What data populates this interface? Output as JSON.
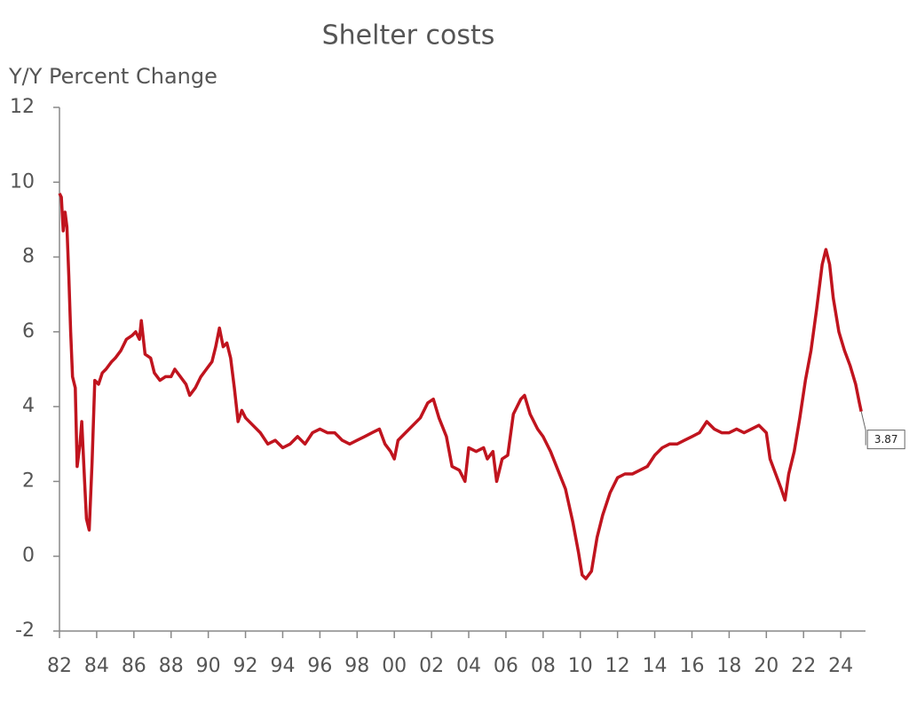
{
  "chart_data": {
    "type": "line",
    "title": "Shelter costs",
    "ylabel": "Y/Y Percent Change",
    "color": "#c0141e",
    "x": [
      1982.0,
      1982.1,
      1982.2,
      1982.3,
      1982.4,
      1982.5,
      1982.6,
      1982.7,
      1982.85,
      1982.95,
      1983.1,
      1983.2,
      1983.35,
      1983.45,
      1983.6,
      1983.75,
      1983.9,
      1984.1,
      1984.3,
      1984.5,
      1984.8,
      1985.0,
      1985.3,
      1985.6,
      1985.9,
      1986.1,
      1986.3,
      1986.4,
      1986.6,
      1986.9,
      1987.1,
      1987.4,
      1987.7,
      1988.0,
      1988.2,
      1988.5,
      1988.8,
      1989.0,
      1989.3,
      1989.6,
      1989.9,
      1990.2,
      1990.4,
      1990.6,
      1990.8,
      1991.0,
      1991.2,
      1991.4,
      1991.6,
      1991.8,
      1992.0,
      1992.4,
      1992.8,
      1993.2,
      1993.6,
      1994.0,
      1994.4,
      1994.8,
      1995.2,
      1995.6,
      1996.0,
      1996.4,
      1996.8,
      1997.2,
      1997.6,
      1998.0,
      1998.4,
      1998.8,
      1999.2,
      1999.5,
      1999.8,
      2000.0,
      2000.2,
      2000.6,
      2001.0,
      2001.4,
      2001.8,
      2002.1,
      2002.4,
      2002.8,
      2003.1,
      2003.5,
      2003.8,
      2004.0,
      2004.4,
      2004.8,
      2005.0,
      2005.3,
      2005.5,
      2005.8,
      2006.1,
      2006.4,
      2006.8,
      2007.0,
      2007.3,
      2007.7,
      2008.0,
      2008.4,
      2008.8,
      2009.2,
      2009.6,
      2009.9,
      2010.1,
      2010.3,
      2010.6,
      2010.9,
      2011.2,
      2011.6,
      2012.0,
      2012.4,
      2012.8,
      2013.2,
      2013.6,
      2014.0,
      2014.4,
      2014.8,
      2015.2,
      2015.6,
      2016.0,
      2016.4,
      2016.8,
      2017.2,
      2017.6,
      2018.0,
      2018.4,
      2018.8,
      2019.2,
      2019.6,
      2020.0,
      2020.2,
      2020.5,
      2020.8,
      2021.0,
      2021.2,
      2021.5,
      2021.8,
      2022.1,
      2022.4,
      2022.7,
      2023.0,
      2023.2,
      2023.4,
      2023.6,
      2023.9,
      2024.2,
      2024.5,
      2024.8,
      2025.0,
      2025.1
    ],
    "values": [
      9.7,
      9.6,
      8.7,
      9.2,
      8.8,
      7.5,
      6.0,
      4.8,
      4.5,
      2.4,
      3.0,
      3.6,
      2.0,
      1.0,
      0.7,
      2.5,
      4.7,
      4.6,
      4.9,
      5.0,
      5.2,
      5.3,
      5.5,
      5.8,
      5.9,
      6.0,
      5.8,
      6.3,
      5.4,
      5.3,
      4.9,
      4.7,
      4.8,
      4.8,
      5.0,
      4.8,
      4.6,
      4.3,
      4.5,
      4.8,
      5.0,
      5.2,
      5.6,
      6.1,
      5.6,
      5.7,
      5.3,
      4.5,
      3.6,
      3.9,
      3.7,
      3.5,
      3.3,
      3.0,
      3.1,
      2.9,
      3.0,
      3.2,
      3.0,
      3.3,
      3.4,
      3.3,
      3.3,
      3.1,
      3.0,
      3.1,
      3.2,
      3.3,
      3.4,
      3.0,
      2.8,
      2.6,
      3.1,
      3.3,
      3.5,
      3.7,
      4.1,
      4.2,
      3.7,
      3.2,
      2.4,
      2.3,
      2.0,
      2.9,
      2.8,
      2.9,
      2.6,
      2.8,
      2.0,
      2.6,
      2.7,
      3.8,
      4.2,
      4.3,
      3.8,
      3.4,
      3.2,
      2.8,
      2.3,
      1.8,
      0.9,
      0.1,
      -0.5,
      -0.6,
      -0.4,
      0.5,
      1.1,
      1.7,
      2.1,
      2.2,
      2.2,
      2.3,
      2.4,
      2.7,
      2.9,
      3.0,
      3.0,
      3.1,
      3.2,
      3.3,
      3.6,
      3.4,
      3.3,
      3.3,
      3.4,
      3.3,
      3.4,
      3.5,
      3.3,
      2.6,
      2.2,
      1.8,
      1.5,
      2.2,
      2.8,
      3.7,
      4.7,
      5.5,
      6.6,
      7.8,
      8.2,
      7.8,
      6.9,
      6.0,
      5.5,
      5.1,
      4.6,
      4.1,
      3.87
    ],
    "xlim": [
      1982,
      2025.33
    ],
    "xticks": [
      {
        "value": 1982,
        "label": "82"
      },
      {
        "value": 1984,
        "label": "84"
      },
      {
        "value": 1986,
        "label": "86"
      },
      {
        "value": 1988,
        "label": "88"
      },
      {
        "value": 1990,
        "label": "90"
      },
      {
        "value": 1992,
        "label": "92"
      },
      {
        "value": 1994,
        "label": "94"
      },
      {
        "value": 1996,
        "label": "96"
      },
      {
        "value": 1998,
        "label": "98"
      },
      {
        "value": 2000,
        "label": "00"
      },
      {
        "value": 2002,
        "label": "02"
      },
      {
        "value": 2004,
        "label": "04"
      },
      {
        "value": 2006,
        "label": "06"
      },
      {
        "value": 2008,
        "label": "08"
      },
      {
        "value": 2010,
        "label": "10"
      },
      {
        "value": 2012,
        "label": "12"
      },
      {
        "value": 2014,
        "label": "14"
      },
      {
        "value": 2016,
        "label": "16"
      },
      {
        "value": 2018,
        "label": "18"
      },
      {
        "value": 2020,
        "label": "20"
      },
      {
        "value": 2022,
        "label": "22"
      },
      {
        "value": 2024,
        "label": "24"
      }
    ],
    "ylim": [
      -2,
      12
    ],
    "yticks": [
      -2,
      0,
      2,
      4,
      6,
      8,
      10,
      12
    ]
  }
}
